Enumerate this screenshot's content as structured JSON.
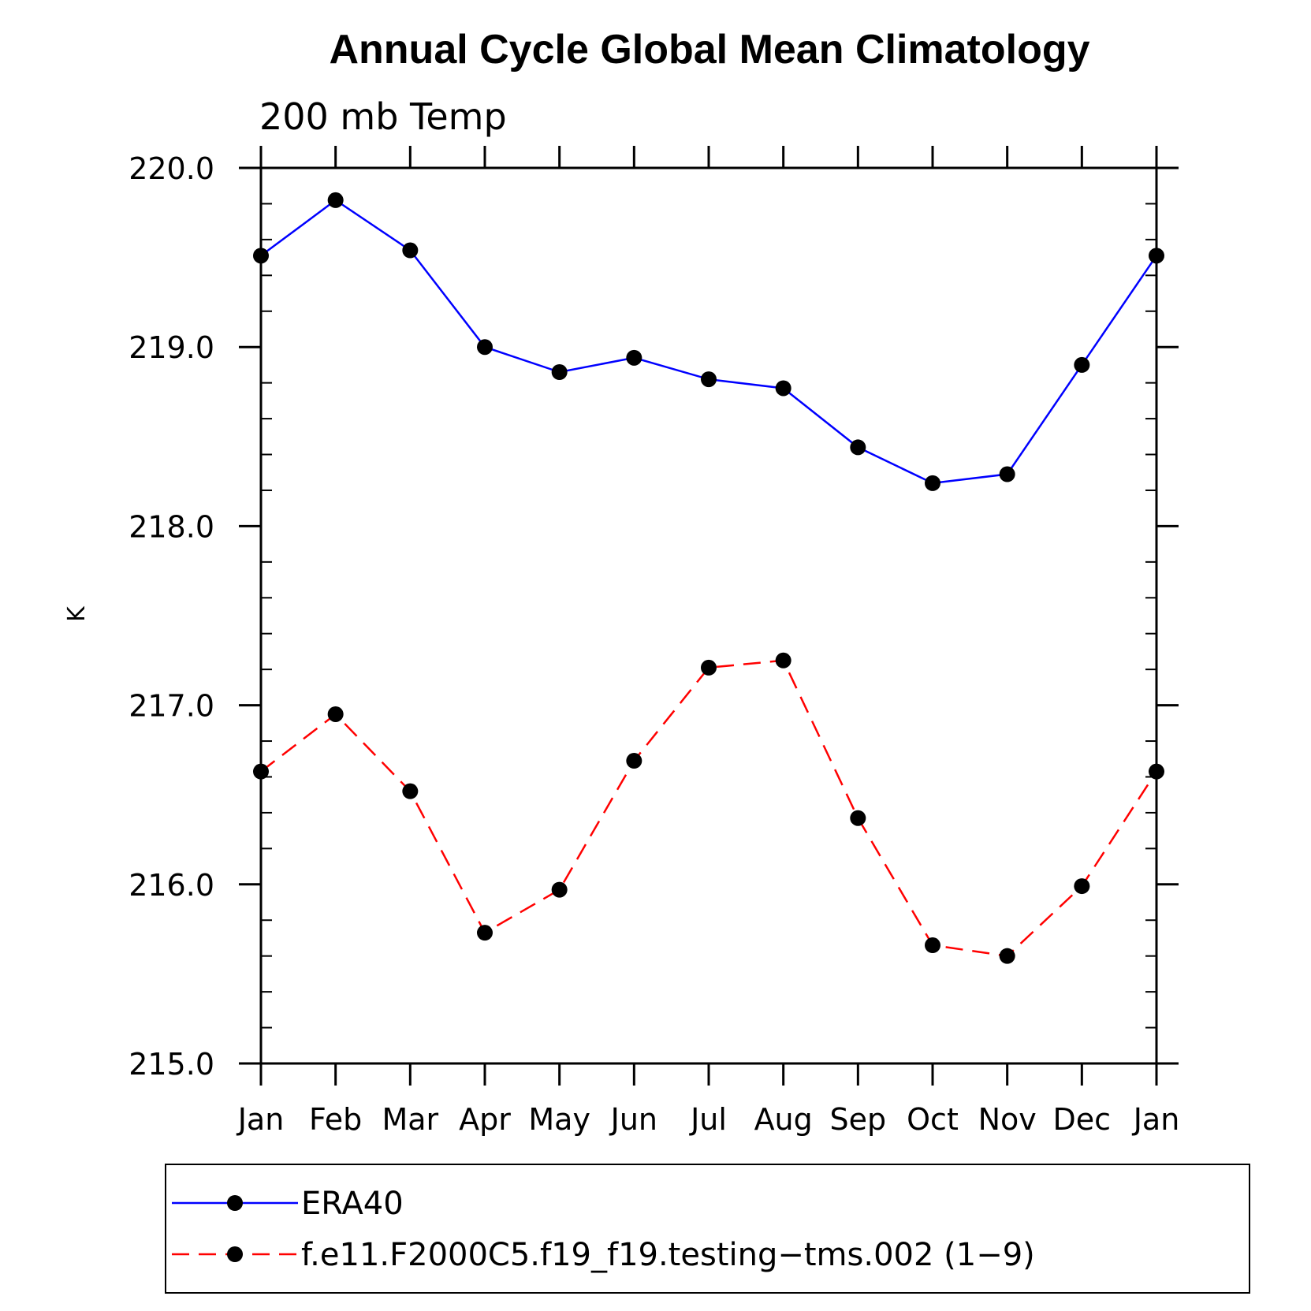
{
  "chart_data": {
    "type": "line",
    "title": "Annual Cycle Global Mean Climatology",
    "subtitle": "200 mb Temp",
    "xlabel": "",
    "ylabel": "K",
    "categories": [
      "Jan",
      "Feb",
      "Mar",
      "Apr",
      "May",
      "Jun",
      "Jul",
      "Aug",
      "Sep",
      "Oct",
      "Nov",
      "Dec",
      "Jan"
    ],
    "ylim": [
      215.0,
      220.0
    ],
    "yticks": [
      "215.0",
      "216.0",
      "217.0",
      "218.0",
      "219.0",
      "220.0"
    ],
    "grid": false,
    "legend_position": "bottom",
    "series": [
      {
        "name": "ERA40",
        "color": "#0000ff",
        "line_style": "solid",
        "marker": "filled-circle",
        "values": [
          219.51,
          219.82,
          219.54,
          219.0,
          218.86,
          218.94,
          218.82,
          218.77,
          218.44,
          218.24,
          218.29,
          218.9,
          219.51
        ]
      },
      {
        "name": "f.e11.F2000C5.f19_f19.testing−tms.002 (1−9)",
        "color": "#ff0000",
        "line_style": "dashed",
        "marker": "filled-circle",
        "values": [
          216.63,
          216.95,
          216.52,
          215.73,
          215.97,
          216.69,
          217.21,
          217.25,
          216.37,
          215.66,
          215.6,
          215.99,
          216.63
        ]
      }
    ]
  }
}
